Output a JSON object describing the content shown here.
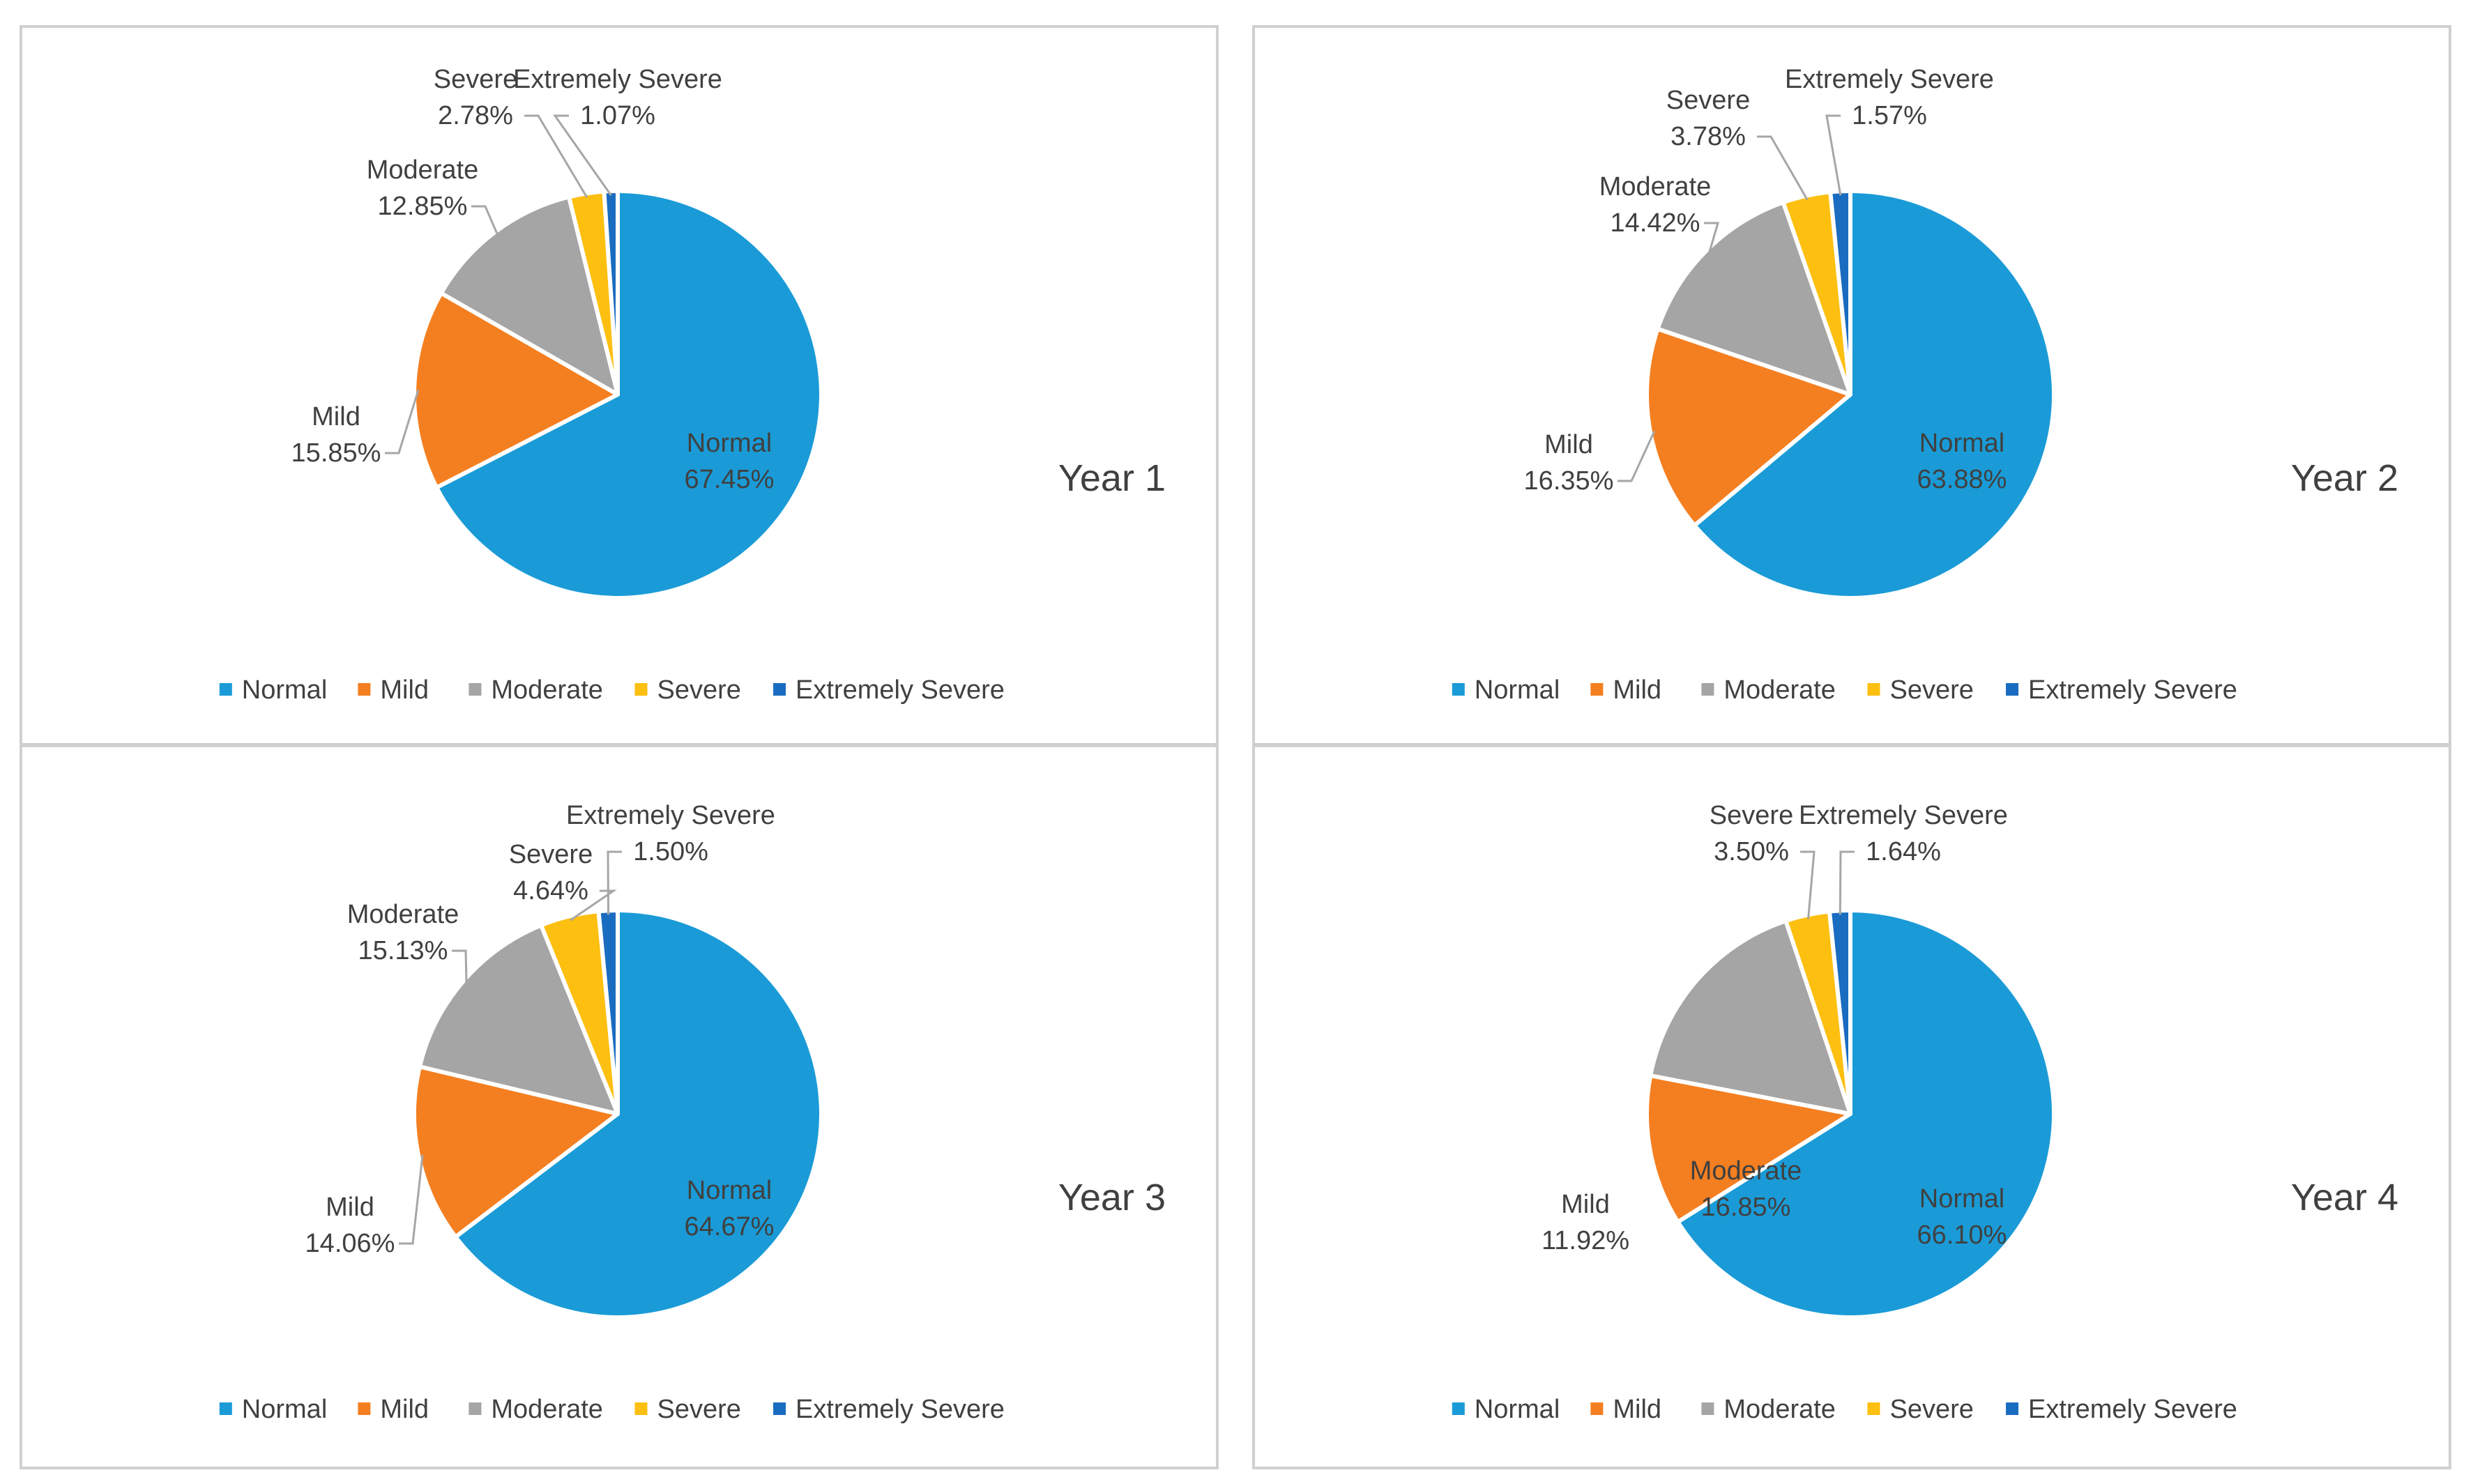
{
  "colors": {
    "Normal": "#1a9bd7",
    "Mild": "#f47f20",
    "Moderate": "#a5a5a5",
    "Severe": "#fdbf10",
    "Extremely Severe": "#1a6cc0",
    "label_text": "#404040",
    "border": "#d0d0d0"
  },
  "chart_data": [
    {
      "type": "pie",
      "title": "Year 1",
      "legend_position": "bottom",
      "categories": [
        "Normal",
        "Mild",
        "Moderate",
        "Severe",
        "Extremely Severe"
      ],
      "values": [
        67.45,
        15.85,
        12.85,
        2.78,
        1.07
      ],
      "value_labels": [
        "67.45%",
        "15.85%",
        "12.85%",
        "2.78%",
        "1.07%"
      ],
      "legend": [
        "Normal",
        "Mild",
        "Moderate",
        "Severe",
        "Extremely Severe"
      ]
    },
    {
      "type": "pie",
      "title": "Year 2",
      "legend_position": "bottom",
      "categories": [
        "Normal",
        "Mild",
        "Moderate",
        "Severe",
        "Extremely Severe"
      ],
      "values": [
        63.88,
        16.35,
        14.42,
        3.78,
        1.57
      ],
      "value_labels": [
        "63.88%",
        "16.35%",
        "14.42%",
        "3.78%",
        "1.57%"
      ],
      "legend": [
        "Normal",
        "Mild",
        "Moderate",
        "Severe",
        "Extremely Severe"
      ]
    },
    {
      "type": "pie",
      "title": "Year 3",
      "legend_position": "bottom",
      "categories": [
        "Normal",
        "Mild",
        "Moderate",
        "Severe",
        "Extremely Severe"
      ],
      "values": [
        64.67,
        14.06,
        15.13,
        4.64,
        1.5
      ],
      "value_labels": [
        "64.67%",
        "14.06%",
        "15.13%",
        "4.64%",
        "1.50%"
      ],
      "legend": [
        "Normal",
        "Mild",
        "Moderate",
        "Severe",
        "Extremely Severe"
      ]
    },
    {
      "type": "pie",
      "title": "Year 4",
      "legend_position": "bottom",
      "categories": [
        "Normal",
        "Mild",
        "Moderate",
        "Severe",
        "Extremely Severe"
      ],
      "values": [
        66.1,
        11.92,
        16.85,
        3.5,
        1.64
      ],
      "value_labels": [
        "66.10%",
        "11.92%",
        "16.85%",
        "3.50%",
        "1.64%"
      ],
      "legend": [
        "Normal",
        "Mild",
        "Moderate",
        "Severe",
        "Extremely Severe"
      ]
    }
  ]
}
